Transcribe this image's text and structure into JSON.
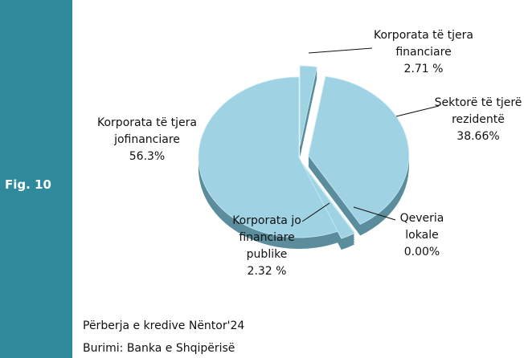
{
  "figure_label": "Fig. 10",
  "chart_data": {
    "type": "pie",
    "categories": [
      "Korporata të tjera financiare",
      "Sektorë të tjerë rezidentë",
      "Qeveria lokale",
      "Korporata jo financiare publike",
      "Korporata të tjera jofinanciare"
    ],
    "values": [
      2.71,
      38.66,
      0.0,
      2.32,
      56.3
    ],
    "value_labels": [
      "2.71 %",
      "38.66%",
      "0.00%",
      "2.32 %",
      "56.3%"
    ],
    "color": "#9fd3e4"
  },
  "caption": "Përberja e kredive Nëntor'24",
  "source": "Burimi: Banka e Shqipërisë"
}
